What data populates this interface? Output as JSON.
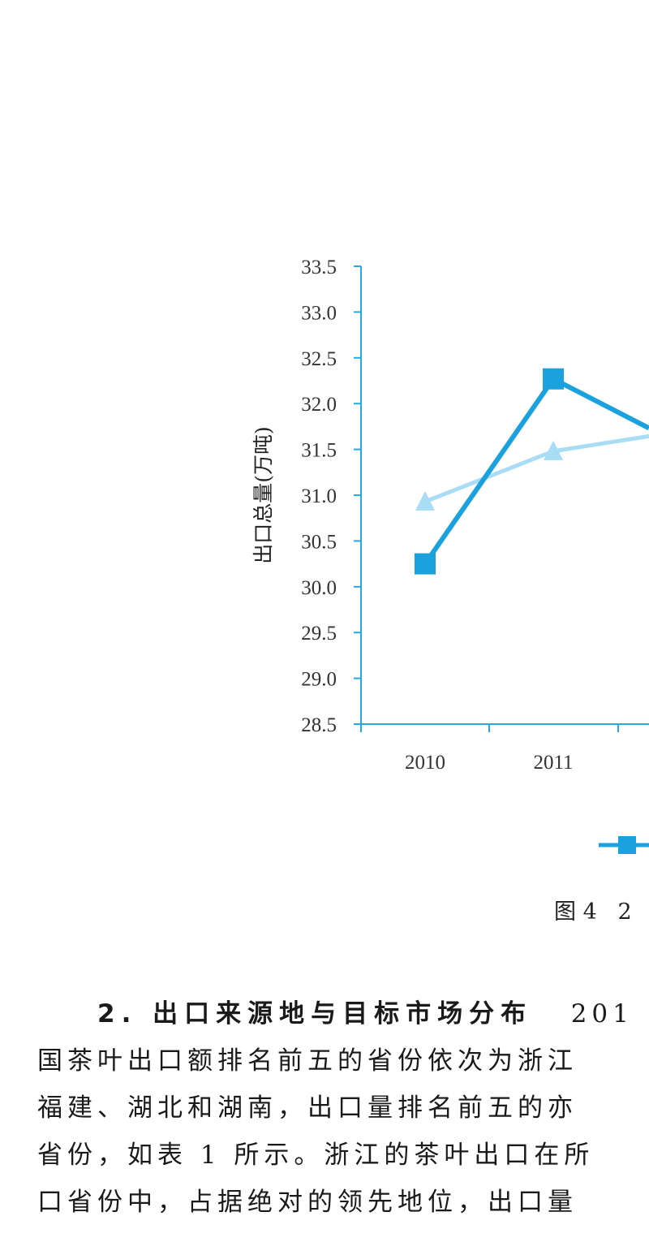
{
  "chart_data": {
    "type": "line",
    "xlabel": "",
    "ylabel": "出口总量(万吨)",
    "ylim": [
      28.5,
      33.5
    ],
    "yticks": [
      "33.5",
      "33.0",
      "32.5",
      "32.0",
      "31.5",
      "31.0",
      "30.5",
      "30.0",
      "29.5",
      "29.0",
      "28.5"
    ],
    "categories": [
      "2010",
      "2011"
    ],
    "series": [
      {
        "color": "#1aa1de",
        "marker": "square",
        "values": [
          30.25,
          32.27
        ],
        "continues_to": 31.55
      },
      {
        "color": "#a9dcf5",
        "marker": "triangle",
        "values": [
          30.93,
          31.48
        ],
        "continues_to": 31.7
      }
    ],
    "grid": false
  },
  "caption": "图 4   2",
  "paragraph": {
    "heading": "2. 出口来源地与目标市场分布",
    "lines": [
      "   201",
      "国茶叶出口额排名前五的省份依次为浙江",
      "福建、湖北和湖南，出口量排名前五的亦",
      "省份，如表 1 所示。浙江的茶叶出口在所",
      "口省份中，占据绝对的领先地位，出口量"
    ]
  }
}
